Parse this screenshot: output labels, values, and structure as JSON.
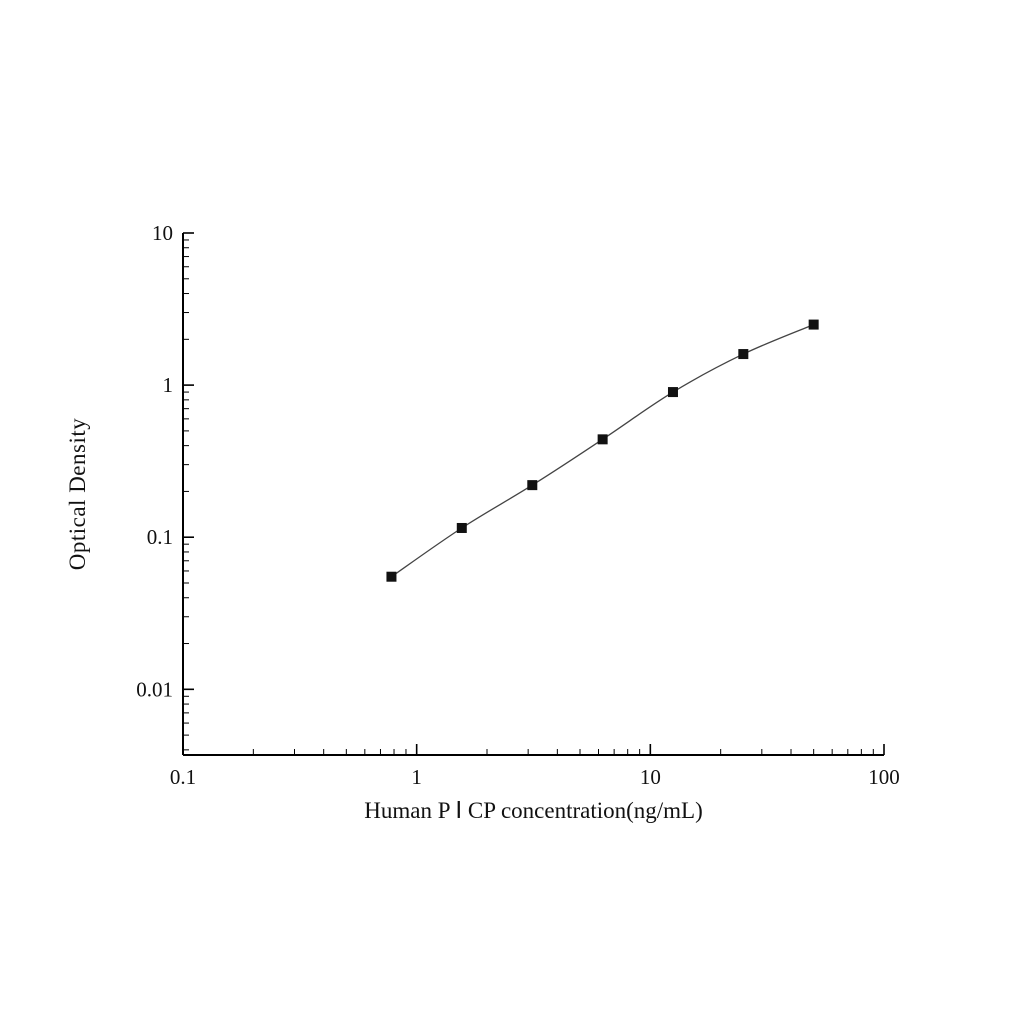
{
  "chart_data": {
    "type": "line",
    "title": "",
    "xlabel": "Human P Ⅰ CP concentration(ng/mL)",
    "ylabel": "Optical Density",
    "x": [
      0.78,
      1.56,
      3.125,
      6.25,
      12.5,
      25,
      50
    ],
    "y": [
      0.055,
      0.115,
      0.22,
      0.44,
      0.9,
      1.6,
      2.5
    ],
    "xscale": "log",
    "yscale": "log",
    "xlim": [
      0.1,
      100
    ],
    "ylim": [
      0.0037,
      10
    ],
    "x_ticks": [
      0.1,
      1,
      10,
      100
    ],
    "x_tick_labels": [
      "0.1",
      "1",
      "10",
      "100"
    ],
    "y_ticks": [
      10,
      1,
      0.1,
      0.01
    ],
    "y_tick_labels": [
      "10",
      "1",
      "0.1",
      "0.01"
    ],
    "grid": false,
    "legend": false,
    "marker": "square",
    "marker_color": "#111111",
    "line_color": "#444444",
    "axis_color": "#000000",
    "background": "#ffffff"
  }
}
